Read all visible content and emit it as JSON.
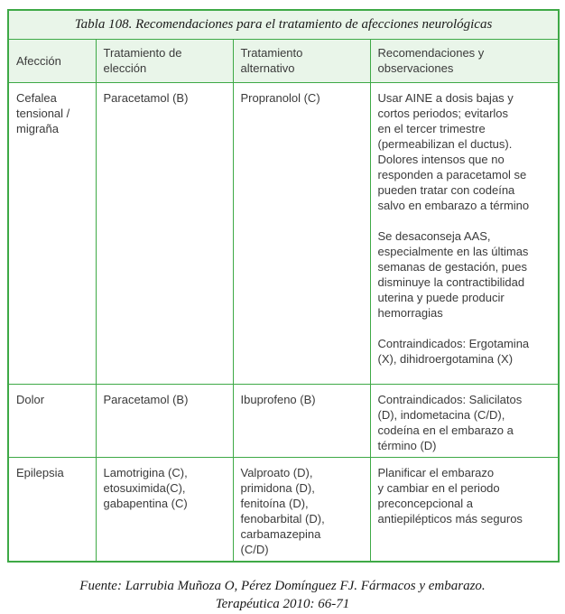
{
  "theme": {
    "border_green": "#3EA946",
    "header_background": "#E9F5E9",
    "cell_background": "#FFFFFF",
    "body_text_color": "#3A3A3A",
    "serif_text_color": "#1A1A1A"
  },
  "table": {
    "title": "Tabla 108. Recomendaciones para el tratamiento de afecciones neurológicas",
    "headers": [
      "Afección",
      "Tratamiento de\nelección",
      "Tratamiento\nalternativo",
      "Recomendaciones y\nobservaciones"
    ],
    "rows": [
      {
        "afeccion": "Cefalea\ntensional /\nmigraña",
        "eleccion": "Paracetamol (B)",
        "alternativo": "Propranolol (C)",
        "recomendaciones": "Usar AINE a dosis bajas y\ncortos periodos; evitarlos\nen el tercer trimestre\n(permeabilizan el ductus).\nDolores intensos que no\nresponden a paracetamol se\npueden tratar con codeína\nsalvo en embarazo a término\n\nSe desaconseja AAS,\nespecialmente en las últimas\nsemanas de gestación, pues\ndisminuye la contractibilidad\nuterina y puede producir\nhemorragias\n\nContraindicados: Ergotamina\n(X), dihidroergotamina (X)"
      },
      {
        "afeccion": "Dolor",
        "eleccion": "Paracetamol (B)",
        "alternativo": "Ibuprofeno (B)",
        "recomendaciones": "Contraindicados: Salicilatos\n(D), indometacina (C/D),\ncodeína en el embarazo a\ntérmino (D)"
      },
      {
        "afeccion": "Epilepsia",
        "eleccion": "Lamotrigina (C),\netosuximida(C),\ngabapentina (C)",
        "alternativo": "Valproato (D),\nprimidona (D),\nfenitoína (D),\nfenobarbital (D),\ncarbamazepina\n(C/D)",
        "recomendaciones": "Planificar el embarazo\ny cambiar en el periodo\npreconcepcional a\nantiepilépticos más seguros"
      }
    ]
  },
  "source": {
    "line1": "Fuente: Larrubia Muñoza O, Pérez Domínguez FJ. Fármacos y embarazo.",
    "line2": "Terapéutica 2010: 66-71"
  }
}
